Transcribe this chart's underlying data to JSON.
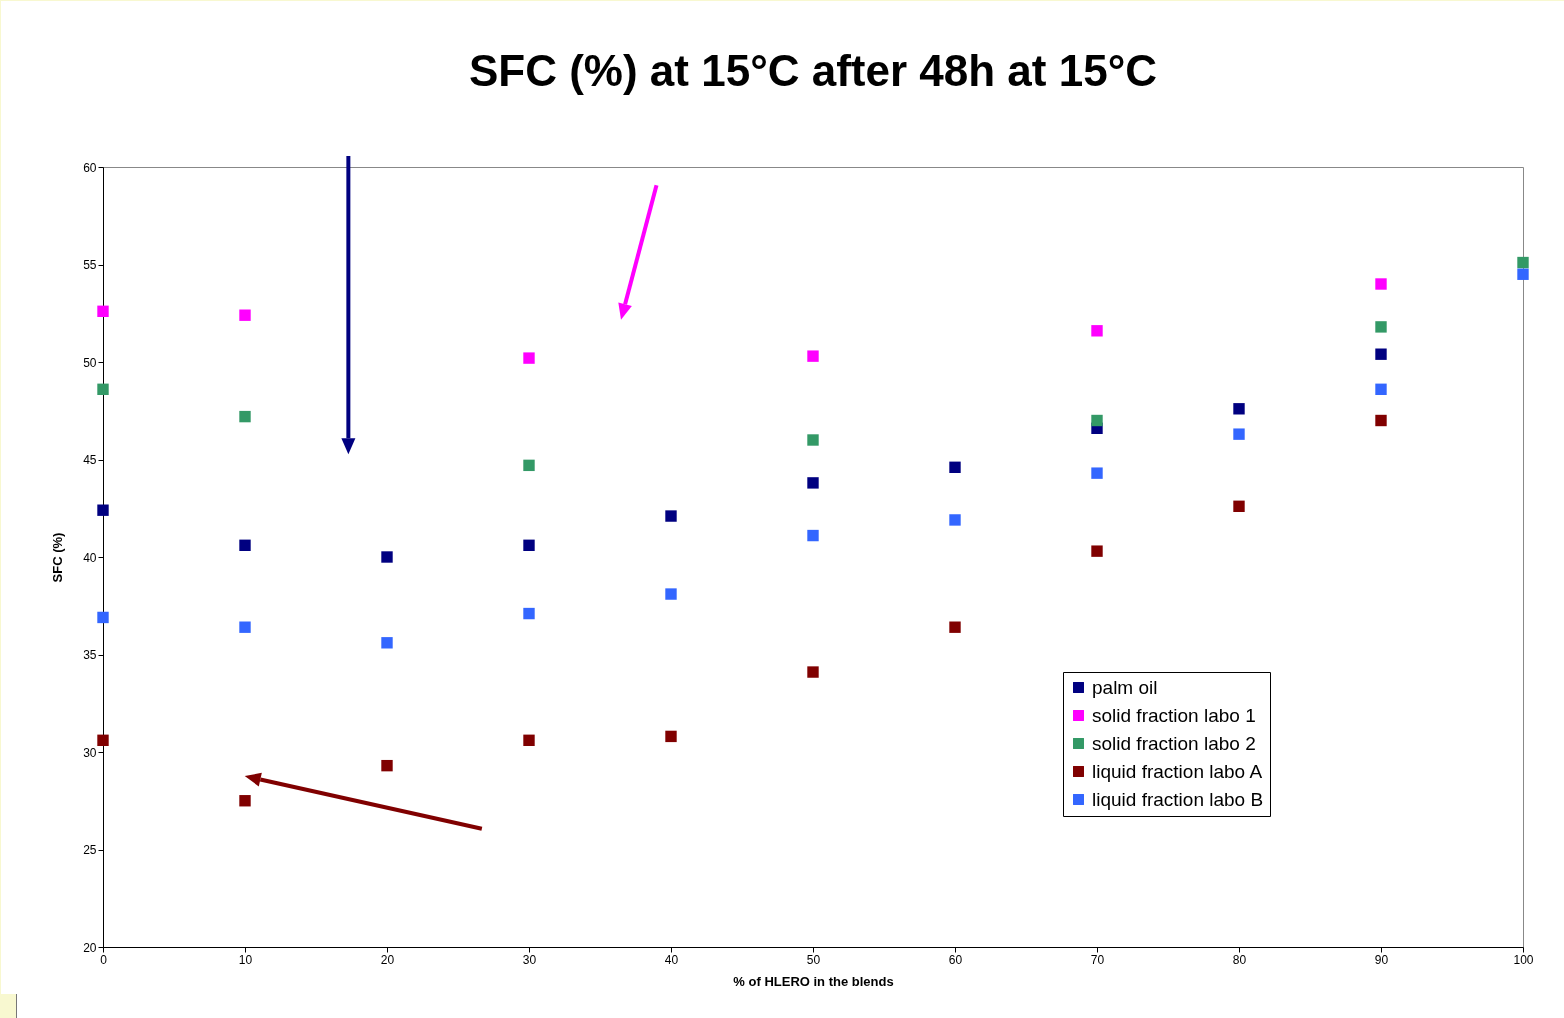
{
  "chart_data": {
    "type": "scatter",
    "title": "SFC (%) at 15°C after 48h at 15°C",
    "xlabel": "% of HLERO in the blends",
    "ylabel": "SFC (%)",
    "x": [
      0,
      10,
      20,
      30,
      40,
      50,
      60,
      70,
      80,
      90,
      100
    ],
    "series": [
      {
        "name": "palm oil",
        "color": "#000080",
        "values": [
          42.4,
          40.6,
          40.0,
          40.6,
          42.1,
          43.8,
          44.6,
          46.6,
          47.6,
          50.4,
          null
        ]
      },
      {
        "name": "solid fraction labo 1",
        "color": "#ff00ff",
        "values": [
          52.6,
          52.4,
          null,
          50.2,
          null,
          50.3,
          null,
          51.6,
          null,
          54.0,
          null
        ]
      },
      {
        "name": "solid fraction labo 2",
        "color": "#339966",
        "values": [
          48.6,
          47.2,
          null,
          44.7,
          null,
          46.0,
          null,
          47.0,
          null,
          51.8,
          55.1
        ]
      },
      {
        "name": "liquid fraction labo A",
        "color": "#800000",
        "values": [
          30.6,
          27.5,
          29.3,
          30.6,
          30.8,
          34.1,
          36.4,
          40.3,
          42.6,
          47.0,
          null
        ]
      },
      {
        "name": "liquid fraction labo B",
        "color": "#3366ff",
        "values": [
          36.9,
          36.4,
          35.6,
          37.1,
          38.1,
          41.1,
          41.9,
          44.3,
          46.3,
          48.6,
          54.5
        ]
      }
    ],
    "xlim": [
      0,
      100
    ],
    "xticks": [
      0,
      10,
      20,
      30,
      40,
      50,
      60,
      70,
      80,
      90,
      100
    ],
    "ylim": [
      20,
      60
    ],
    "yticks": [
      20,
      25,
      30,
      35,
      40,
      45,
      50,
      55,
      60
    ],
    "grid": false,
    "legend": "bottom right",
    "marker": "square"
  }
}
